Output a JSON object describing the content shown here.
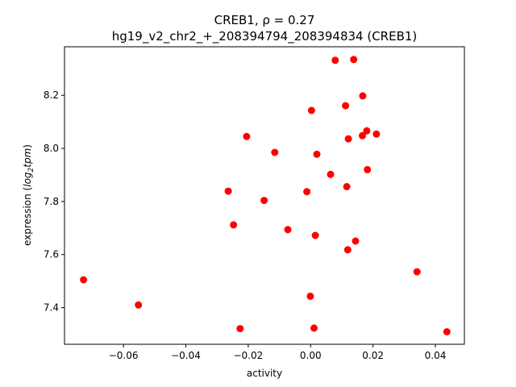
{
  "chart_data": {
    "type": "scatter",
    "title_line1": "CREB1, ρ = 0.27",
    "title_line2": "hg19_v2_chr2_+_208394794_208394834 (CREB1)",
    "xlabel": "activity",
    "ylabel_prefix": "expression (",
    "ylabel_math": "log",
    "ylabel_sub": "2",
    "ylabel_math2": "tpm",
    "ylabel_suffix": ")",
    "xlim": [
      -0.0789,
      0.0493
    ],
    "ylim": [
      7.262,
      8.383
    ],
    "x_ticks": [
      -0.06,
      -0.04,
      -0.02,
      0.0,
      0.02,
      0.04
    ],
    "x_tick_labels": [
      "−0.06",
      "−0.04",
      "−0.02",
      "0.00",
      "0.02",
      "0.04"
    ],
    "y_ticks": [
      7.4,
      7.6,
      7.8,
      8.0,
      8.2
    ],
    "y_tick_labels": [
      "7.4",
      "7.6",
      "7.8",
      "8.0",
      "8.2"
    ],
    "grid": false,
    "marker_color": "#ff0000",
    "points": [
      {
        "x": 0.0079,
        "y": 8.332
      },
      {
        "x": 0.0138,
        "y": 8.335
      },
      {
        "x": 0.0167,
        "y": 8.198
      },
      {
        "x": 0.0112,
        "y": 8.161
      },
      {
        "x": 0.0003,
        "y": 8.143
      },
      {
        "x": 0.018,
        "y": 8.066
      },
      {
        "x": 0.0166,
        "y": 8.048
      },
      {
        "x": 0.0211,
        "y": 8.054
      },
      {
        "x": 0.0121,
        "y": 8.036
      },
      {
        "x": -0.0205,
        "y": 8.045
      },
      {
        "x": -0.0115,
        "y": 7.985
      },
      {
        "x": 0.002,
        "y": 7.978
      },
      {
        "x": 0.0182,
        "y": 7.92
      },
      {
        "x": 0.0064,
        "y": 7.902
      },
      {
        "x": 0.0116,
        "y": 7.856
      },
      {
        "x": -0.0264,
        "y": 7.839
      },
      {
        "x": -0.0012,
        "y": 7.837
      },
      {
        "x": -0.0149,
        "y": 7.804
      },
      {
        "x": -0.0247,
        "y": 7.712
      },
      {
        "x": -0.0073,
        "y": 7.694
      },
      {
        "x": 0.0015,
        "y": 7.672
      },
      {
        "x": 0.0144,
        "y": 7.651
      },
      {
        "x": 0.0119,
        "y": 7.618
      },
      {
        "x": 0.0341,
        "y": 7.535
      },
      {
        "x": -0.0728,
        "y": 7.505
      },
      {
        "x": -0.0552,
        "y": 7.41
      },
      {
        "x": -0.0001,
        "y": 7.443
      },
      {
        "x": 0.0011,
        "y": 7.323
      },
      {
        "x": -0.0226,
        "y": 7.321
      },
      {
        "x": 0.0437,
        "y": 7.309
      }
    ]
  }
}
